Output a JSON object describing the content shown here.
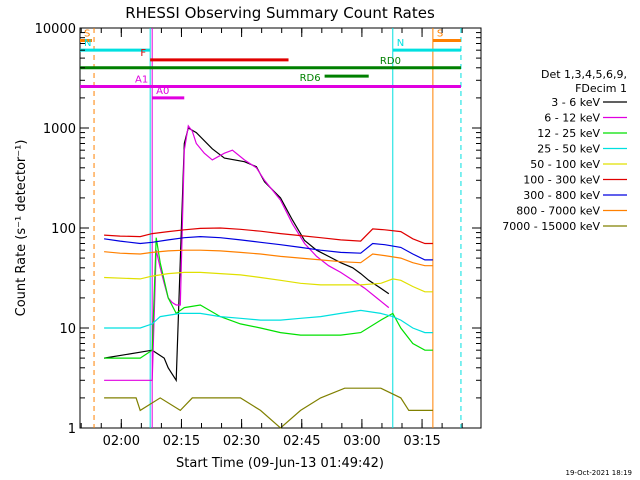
{
  "chart_data": {
    "type": "line",
    "title": "RHESSI Observing Summary Count Rates",
    "xlabel": "Start Time (09-Jun-13 01:49:42)",
    "ylabel": "Count Rate (s⁻¹ detector⁻¹)",
    "y_scale": "log",
    "ylim": [
      1,
      10000
    ],
    "x_range_minutes_after_start": [
      0,
      100
    ],
    "x_ticks": [
      {
        "label": "02:00",
        "minute": 10.3
      },
      {
        "label": "02:15",
        "minute": 25.3
      },
      {
        "label": "02:30",
        "minute": 40.3
      },
      {
        "label": "02:45",
        "minute": 55.3
      },
      {
        "label": "03:00",
        "minute": 70.3
      },
      {
        "label": "03:15",
        "minute": 85.3
      }
    ],
    "y_ticks": [
      {
        "label": "1",
        "value": 1
      },
      {
        "label": "10",
        "value": 10
      },
      {
        "label": "100",
        "value": 100
      },
      {
        "label": "1000",
        "value": 1000
      },
      {
        "label": "10000",
        "value": 10000
      }
    ],
    "legend_placement": "right",
    "legend_header": [
      "Det 1,3,4,5,6,9,",
      "FDecim 1"
    ],
    "series": [
      {
        "name": "3 - 6 keV",
        "color": "#000000",
        "x": [
          6,
          18,
          21,
          22,
          24,
          26,
          27,
          29,
          33,
          36,
          41,
          44,
          46,
          50,
          53,
          56,
          59,
          62,
          65,
          68,
          70,
          72,
          75,
          77
        ],
        "y": [
          5,
          6,
          5,
          4,
          3,
          700,
          1000,
          900,
          620,
          500,
          460,
          410,
          290,
          200,
          120,
          75,
          60,
          52,
          45,
          40,
          35,
          30,
          25,
          22
        ]
      },
      {
        "name": "6 - 12 keV",
        "color": "#e000e0",
        "x": [
          6,
          18,
          19,
          20,
          21,
          22,
          23,
          24,
          25,
          26,
          27,
          28,
          29,
          31,
          33,
          36,
          38,
          41,
          44,
          46,
          50,
          53,
          56,
          59,
          62,
          65,
          68,
          71,
          74,
          77
        ],
        "y": [
          3,
          3,
          60,
          40,
          28,
          20,
          18,
          17,
          17,
          600,
          1050,
          930,
          700,
          560,
          480,
          560,
          600,
          480,
          400,
          300,
          190,
          110,
          70,
          52,
          42,
          36,
          30,
          25,
          20,
          16
        ]
      },
      {
        "name": "12 - 25 keV",
        "color": "#00e000",
        "x": [
          6,
          15,
          18,
          19,
          20,
          22,
          24,
          26,
          30,
          35,
          40,
          45,
          50,
          55,
          60,
          65,
          70,
          75,
          78,
          80,
          83,
          86,
          88
        ],
        "y": [
          5,
          5,
          6,
          80,
          45,
          20,
          14,
          16,
          17,
          13,
          11,
          10,
          9,
          8.5,
          8.5,
          8.5,
          9,
          12,
          14,
          10,
          7,
          6,
          6
        ]
      },
      {
        "name": "25 - 50 keV",
        "color": "#00e0e0",
        "x": [
          6,
          15,
          18,
          20,
          25,
          30,
          35,
          40,
          45,
          50,
          55,
          60,
          65,
          70,
          75,
          78,
          80,
          83,
          86,
          88
        ],
        "y": [
          10,
          10,
          11,
          13,
          14,
          14,
          13,
          12.5,
          12,
          12,
          12.5,
          13,
          14,
          15,
          14,
          13,
          12,
          10,
          9,
          9
        ]
      },
      {
        "name": "50 - 100 keV",
        "color": "#e0e000",
        "x": [
          6,
          15,
          18,
          22,
          26,
          30,
          35,
          40,
          45,
          50,
          55,
          60,
          65,
          70,
          75,
          78,
          80,
          83,
          86,
          88
        ],
        "y": [
          32,
          31,
          33,
          35,
          36,
          36,
          35,
          34,
          32,
          30,
          28,
          27,
          27,
          27,
          28,
          31,
          30,
          26,
          23,
          23
        ]
      },
      {
        "name": "100 - 300 keV",
        "color": "#e00000",
        "x": [
          6,
          10,
          15,
          18,
          22,
          26,
          30,
          35,
          40,
          45,
          50,
          55,
          60,
          65,
          70,
          73,
          76,
          80,
          83,
          86,
          88
        ],
        "y": [
          85,
          83,
          82,
          88,
          92,
          96,
          99,
          100,
          97,
          93,
          88,
          84,
          80,
          76,
          74,
          98,
          96,
          92,
          78,
          70,
          70
        ]
      },
      {
        "name": "300 - 800 keV",
        "color": "#0000e0",
        "x": [
          6,
          10,
          15,
          18,
          22,
          26,
          30,
          35,
          40,
          45,
          50,
          55,
          60,
          65,
          70,
          73,
          76,
          80,
          83,
          86,
          88
        ],
        "y": [
          78,
          74,
          70,
          72,
          76,
          80,
          82,
          80,
          76,
          72,
          68,
          64,
          60,
          57,
          56,
          70,
          68,
          64,
          55,
          48,
          48
        ]
      },
      {
        "name": "800 - 7000 keV",
        "color": "#ff8000",
        "x": [
          6,
          10,
          15,
          18,
          22,
          26,
          30,
          35,
          40,
          45,
          50,
          55,
          60,
          65,
          70,
          73,
          76,
          80,
          83,
          86,
          88
        ],
        "y": [
          58,
          56,
          55,
          57,
          59,
          60,
          60,
          59,
          57,
          55,
          52,
          50,
          48,
          46,
          45,
          55,
          53,
          50,
          45,
          42,
          42
        ]
      },
      {
        "name": "7000 - 15000 keV",
        "color": "#808000",
        "x": [
          6,
          14,
          15,
          20,
          25,
          28,
          40,
          45,
          50,
          55,
          60,
          66,
          70,
          75,
          80,
          82,
          85,
          88
        ],
        "y": [
          2,
          2,
          1.5,
          2,
          1.5,
          2,
          2,
          1.5,
          1,
          1.5,
          2,
          2.5,
          2.5,
          2.5,
          2,
          1.5,
          1.5,
          1.5
        ]
      }
    ],
    "annotations": [
      {
        "label": "S",
        "color": "#ff8000",
        "x_start": 0,
        "x_end": 3,
        "y": 7500
      },
      {
        "label": "S",
        "color": "#ff8000",
        "x_start": 88,
        "x_end": 95,
        "y": 7500
      },
      {
        "label": "N",
        "color": "#00e0e0",
        "x_start": 0,
        "x_end": 17.5,
        "y": 6000
      },
      {
        "label": "N",
        "color": "#00e0e0",
        "x_start": 78,
        "x_end": 95,
        "y": 6000
      },
      {
        "label": "F",
        "color": "#e00000",
        "x_start": 17.5,
        "x_end": 52,
        "y": 4800
      },
      {
        "label": "RD0",
        "color": "#008000",
        "x_start": 0,
        "x_end": 95,
        "y": 4000
      },
      {
        "label": "RD6",
        "color": "#008000",
        "x_start": 61,
        "x_end": 72,
        "y": 3300
      },
      {
        "label": "A1",
        "color": "#e000e0",
        "x_start": 0,
        "x_end": 95,
        "y": 2600
      },
      {
        "label": "A0",
        "color": "#e000e0",
        "x_start": 18,
        "x_end": 26,
        "y": 2000
      }
    ],
    "vertical_markers": [
      {
        "minute": 3.5,
        "color": "#ff8000",
        "style": "dashed"
      },
      {
        "minute": 17.5,
        "color": "#00e0e0",
        "style": "solid"
      },
      {
        "minute": 18,
        "color": "#e000e0",
        "style": "solid"
      },
      {
        "minute": 78,
        "color": "#00e0e0",
        "style": "solid"
      },
      {
        "minute": 88,
        "color": "#ff8000",
        "style": "solid"
      },
      {
        "minute": 95,
        "color": "#00e0e0",
        "style": "dashed"
      }
    ],
    "grid": false
  },
  "footer": {
    "timestamp": "19-Oct-2021 18:19"
  }
}
